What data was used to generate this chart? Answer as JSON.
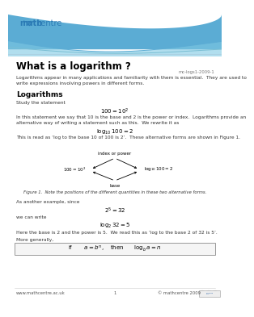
{
  "title": "What is a logarithm ?",
  "ref": "mc-logs1-2009-1",
  "header_bg_color": "#5bacd4",
  "logo_bold": "math",
  "logo_regular": "centre",
  "logo_color": "#2a7ab5",
  "section_title": "Logarithms",
  "footer_url": "www.mathcentre.ac.uk",
  "footer_page": "1",
  "footer_copy": "© mathcentre 2009",
  "fig_caption": "Figure 1.  Note the positions of the different quantities in these two alternative forms.",
  "intro": "Logarithms appear in many applications and familiarity with them is essential.  They are used to write expressions involving powers in different forms.",
  "expl": "In this statement we say that 10 is the base and 2 is the power or index.  Logarithms provide an alternative way of writing a statement such as this.  We rewrite it as",
  "read_as": "This is read as ‘log to the base 10 of 100 is 2’.  These alternative forms are shown in Figure 1.",
  "as_another": "As another example, since",
  "we_can": "we can write",
  "here_base": "Here the base is 2 and the power is 5.  We read this as ‘log to the base 2 of 32 is 5’.",
  "more_gen": "More generally,",
  "study": "Study the statement"
}
